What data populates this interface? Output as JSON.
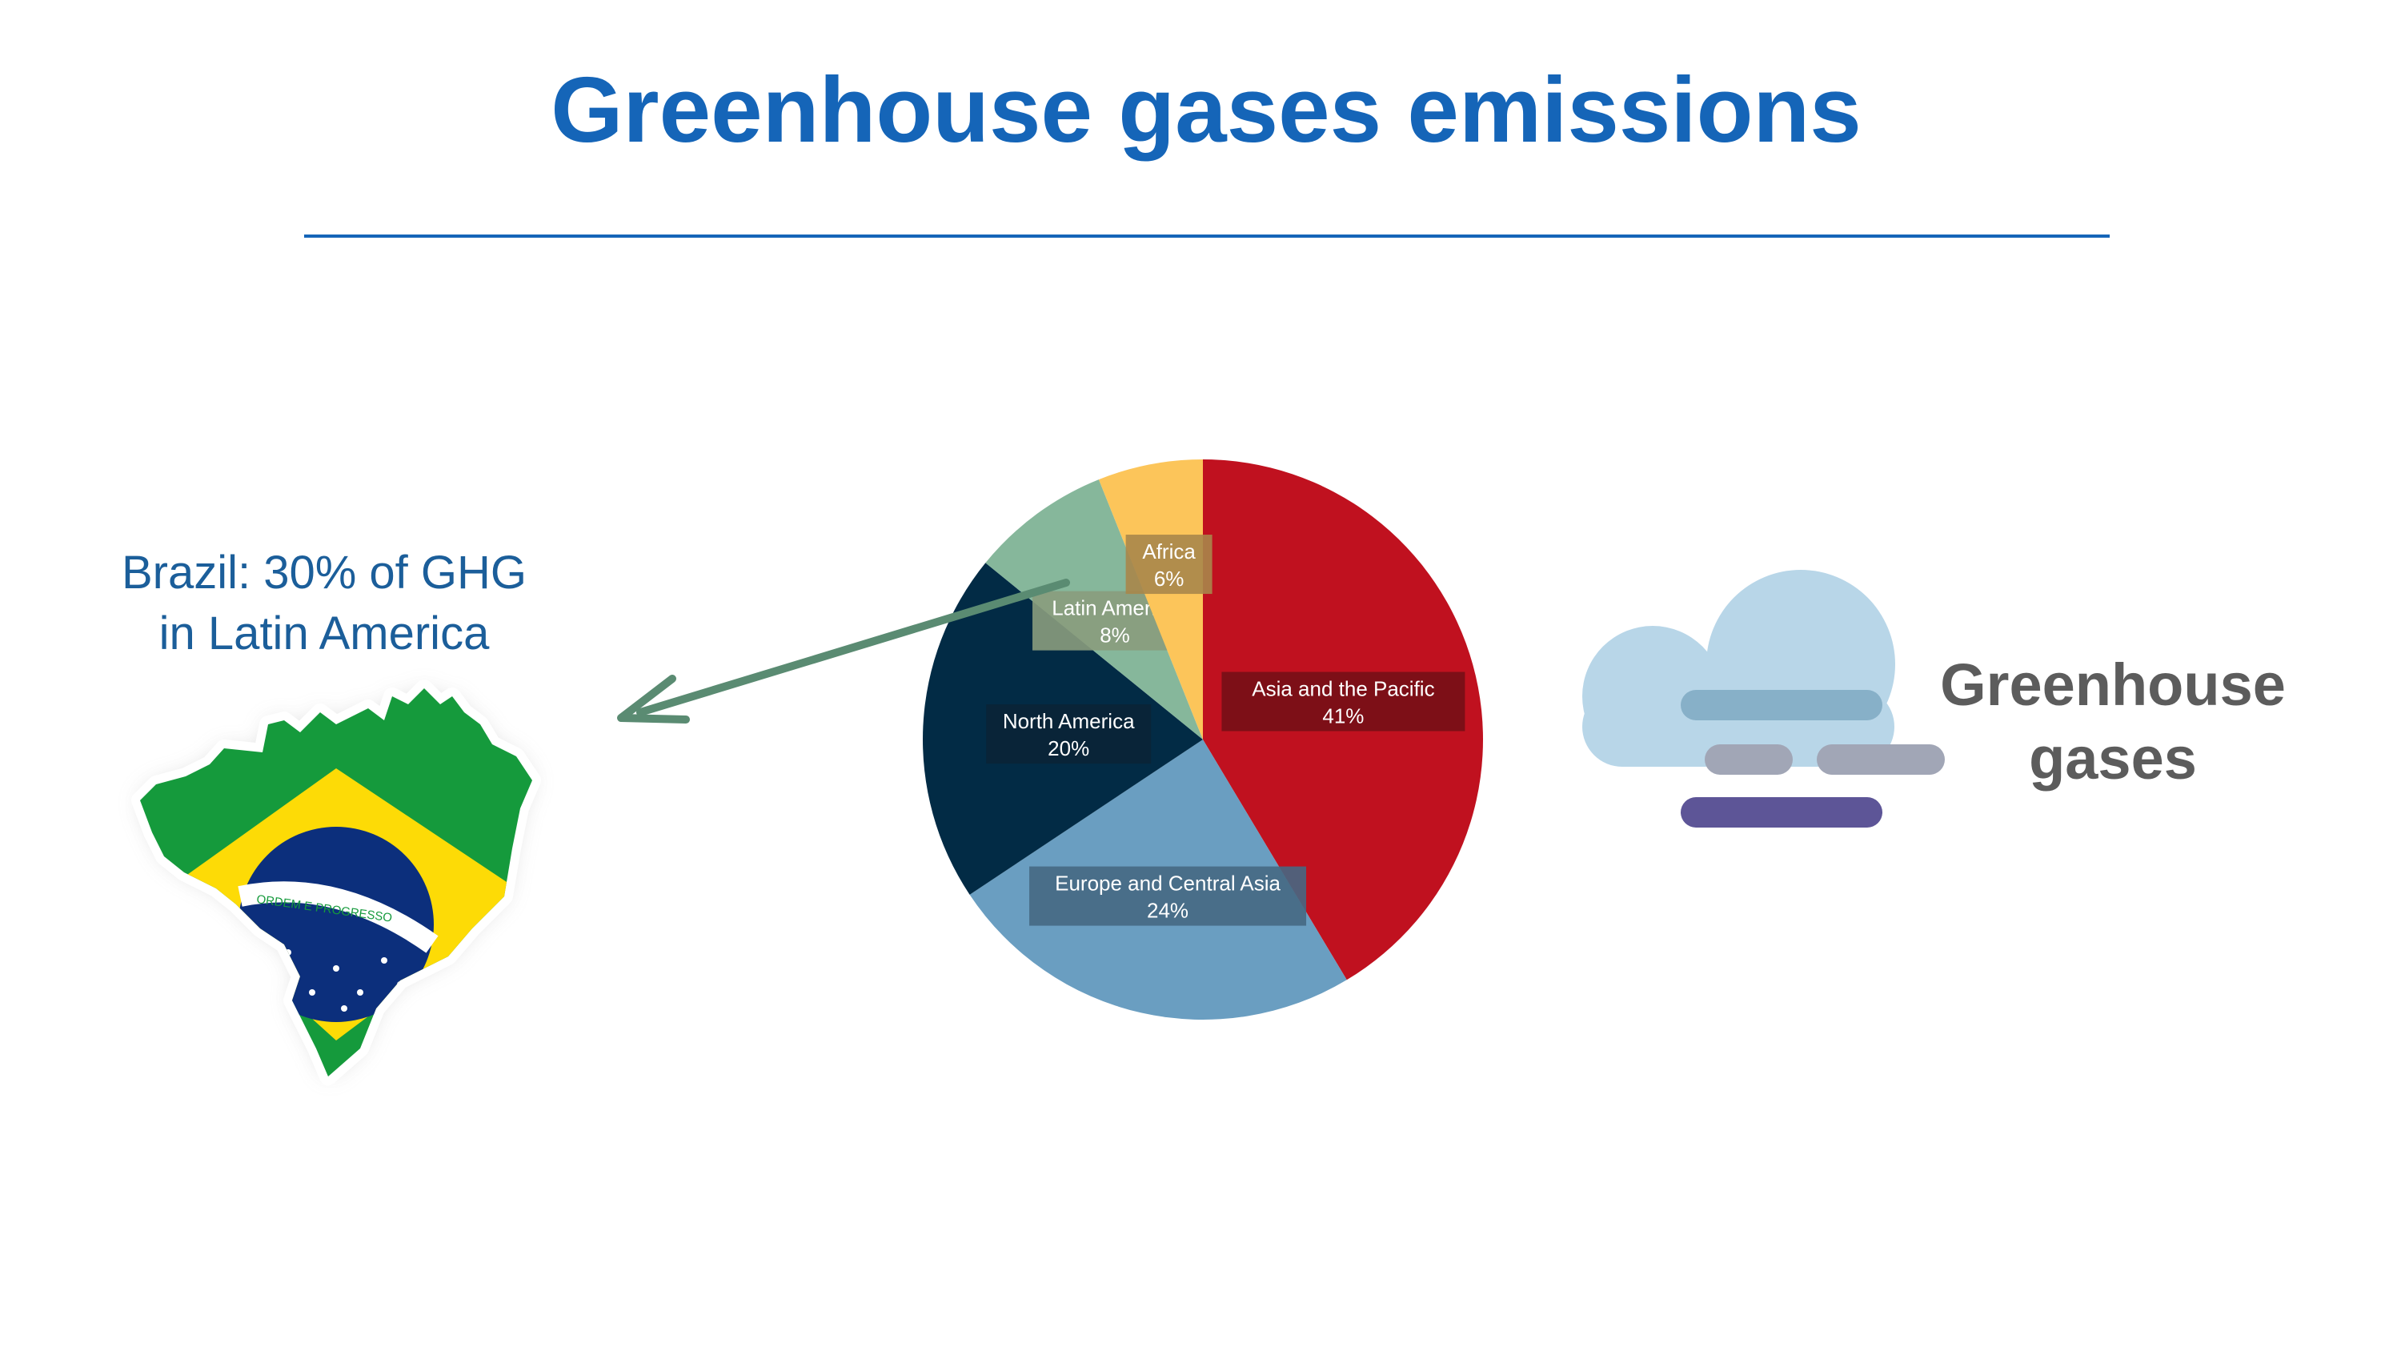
{
  "page": {
    "title": "Greenhouse gases emissions",
    "brazil_note": [
      "Brazil: 30% of GHG",
      "in Latin America"
    ],
    "ghg_caption": [
      "Greenhouse",
      "gases"
    ]
  },
  "brazil_flag_motto": "ORDEM E PROGRESSO",
  "icons": {
    "cloud": "cloud-fog-icon",
    "map": "brazil-flag-map-icon",
    "arrow": "arrow-left-icon"
  },
  "colors": {
    "title": "#1565b8",
    "asia_pacific": "#c0111f",
    "europe_central_asia": "#6a9ec1",
    "north_america": "#022b45",
    "latin_america": "#86b79b",
    "africa": "#fcc55a",
    "arrow": "#5a8b72"
  },
  "chart_data": {
    "type": "pie",
    "title": "",
    "slices": [
      {
        "name": "Asia and the Pacific",
        "value": 41,
        "label": "41%",
        "color": "#c0111f",
        "label_bg": "#761016"
      },
      {
        "name": "Europe and Central Asia",
        "value": 24,
        "label": "24%",
        "color": "#6a9ec1",
        "label_bg": "#466883"
      },
      {
        "name": "North America",
        "value": 20,
        "label": "20%",
        "color": "#022b45",
        "label_bg": "#0a2336"
      },
      {
        "name": "Latin America",
        "value": 8,
        "label": "8%",
        "color": "#86b79b",
        "label_bg": "#8a9c7d"
      },
      {
        "name": "Africa",
        "value": 6,
        "label": "6%",
        "color": "#fcc55a",
        "label_bg": "#a8864a"
      }
    ],
    "start": "12 o'clock, clockwise",
    "legend": "none (labels on slices)"
  }
}
